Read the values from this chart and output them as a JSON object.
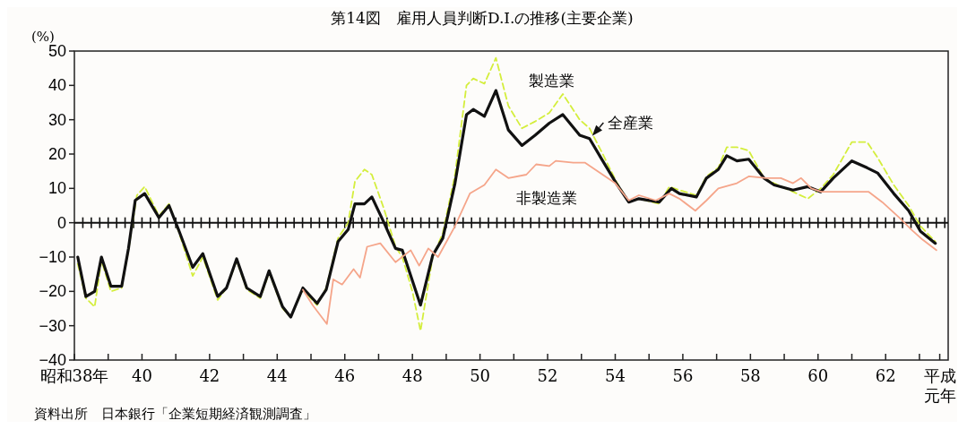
{
  "chart_data": {
    "type": "line",
    "title": "第14図　雇用人員判断D.I.の推移(主要企業)",
    "ylabel": "(%)",
    "xlim": [
      38,
      63.85
    ],
    "ylim": [
      -40,
      50
    ],
    "xticks": [
      {
        "value": 38,
        "label": "昭和38年"
      },
      {
        "value": 39,
        "label": null
      },
      40,
      {
        "value": 41,
        "label": null
      },
      42,
      {
        "value": 43,
        "label": null
      },
      44,
      {
        "value": 45,
        "label": null
      },
      46,
      {
        "value": 47,
        "label": null
      },
      48,
      {
        "value": 49,
        "label": null
      },
      50,
      {
        "value": 51,
        "label": null
      },
      52,
      {
        "value": 53,
        "label": null
      },
      54,
      {
        "value": 55,
        "label": null
      },
      56,
      {
        "value": 57,
        "label": null
      },
      58,
      {
        "value": 59,
        "label": null
      },
      60,
      {
        "value": 61,
        "label": null
      },
      62,
      {
        "value": 63,
        "label": null
      },
      {
        "value": 63.6,
        "label": "平成元年"
      }
    ],
    "yticks": [
      -40,
      -30,
      -20,
      -10,
      0,
      10,
      20,
      30,
      40,
      50
    ],
    "grid": false,
    "ref_lines": [
      {
        "axis": "y",
        "value": 0,
        "color": "#111111"
      }
    ],
    "series": [
      {
        "name": "製造業",
        "color": "#d4ee3c",
        "line_style": "dashed",
        "x": [
          38.1,
          38.34,
          38.6,
          38.8,
          39.08,
          39.4,
          39.6,
          39.85,
          40.08,
          40.5,
          40.8,
          41.1,
          41.5,
          41.8,
          42.24,
          42.5,
          42.8,
          43.1,
          43.5,
          43.76,
          44.16,
          44.4,
          44.76,
          45.18,
          45.45,
          45.8,
          46.1,
          46.3,
          46.58,
          46.8,
          47.16,
          47.5,
          47.7,
          48.0,
          48.24,
          48.6,
          48.9,
          49.26,
          49.6,
          49.8,
          50.13,
          50.47,
          50.84,
          51.24,
          51.63,
          52.05,
          52.45,
          52.95,
          53.24,
          53.63,
          54.03,
          54.4,
          54.7,
          55.3,
          55.6,
          55.9,
          56.4,
          56.7,
          57.05,
          57.3,
          57.6,
          57.95,
          58.4,
          58.7,
          59.26,
          59.7,
          60.08,
          60.45,
          61.0,
          61.45,
          61.76,
          62.24,
          62.68,
          63.03,
          63.47
        ],
        "values": [
          -12,
          -22,
          -24.5,
          -11,
          -20,
          -19,
          -8,
          8,
          10.5,
          2,
          5.5,
          -3,
          -15.5,
          -10,
          -22.5,
          -19,
          -11,
          -19.5,
          -22,
          -14.5,
          -25,
          -27.5,
          -19.5,
          -24,
          -19,
          -4.5,
          0,
          12,
          15.5,
          14,
          4,
          -7,
          -10,
          -20,
          -31.5,
          -10,
          -3,
          14,
          40,
          42,
          40.5,
          48,
          34,
          27.5,
          29.5,
          32,
          37.5,
          30,
          27.5,
          20,
          12,
          6,
          7,
          5.5,
          10.5,
          9.5,
          8,
          13.5,
          16,
          22,
          22,
          21,
          13,
          11.5,
          9,
          7,
          10,
          14,
          23.5,
          23.5,
          19,
          11,
          5,
          -1,
          -5.5
        ]
      },
      {
        "name": "全産業",
        "color": "#111111",
        "line_style": "solid",
        "x": [
          38.1,
          38.34,
          38.6,
          38.8,
          39.08,
          39.4,
          39.6,
          39.8,
          40.08,
          40.5,
          40.8,
          41.1,
          41.5,
          41.8,
          42.24,
          42.5,
          42.8,
          43.1,
          43.5,
          43.76,
          44.16,
          44.4,
          44.76,
          45.18,
          45.45,
          45.8,
          46.1,
          46.3,
          46.58,
          46.8,
          47.16,
          47.5,
          47.7,
          48.24,
          48.6,
          48.9,
          49.26,
          49.6,
          49.8,
          50.13,
          50.47,
          50.84,
          51.24,
          51.63,
          52.05,
          52.45,
          52.95,
          53.24,
          53.63,
          54.03,
          54.4,
          54.7,
          55.3,
          55.66,
          55.9,
          56.4,
          56.7,
          57.05,
          57.3,
          57.6,
          57.95,
          58.4,
          58.7,
          59.26,
          59.7,
          60.08,
          60.45,
          61.0,
          61.45,
          61.76,
          62.24,
          62.68,
          63.03,
          63.47
        ],
        "values": [
          -10,
          -21.5,
          -20,
          -10,
          -18.5,
          -18.5,
          -7.5,
          6.5,
          8.5,
          1.5,
          5,
          -2.5,
          -13,
          -9,
          -21.5,
          -19,
          -10.5,
          -19,
          -21.5,
          -14,
          -24.5,
          -27.5,
          -19,
          -23.5,
          -19.5,
          -5.5,
          -2,
          5.5,
          5.5,
          7.5,
          0,
          -7.5,
          -8,
          -24,
          -9.5,
          -4.5,
          11.5,
          31.5,
          33,
          31,
          38.5,
          27,
          22.5,
          25.5,
          29,
          31.5,
          25.5,
          24.5,
          18,
          11.5,
          6,
          7,
          6,
          10,
          8.5,
          7.5,
          13,
          15.5,
          19.5,
          18,
          18.5,
          13,
          11,
          9.5,
          10.5,
          9,
          13,
          18,
          16,
          14.5,
          8.5,
          3.5,
          -2.5,
          -6
        ]
      },
      {
        "name": "非製造業",
        "color": "#f5a58a",
        "line_style": "solid",
        "x": [
          44.76,
          45.05,
          45.47,
          45.66,
          45.92,
          46.26,
          46.45,
          46.66,
          47.05,
          47.5,
          47.95,
          48.2,
          48.47,
          48.76,
          49.26,
          49.7,
          50.13,
          50.47,
          50.84,
          51.37,
          51.66,
          52.05,
          52.24,
          52.76,
          53.1,
          53.55,
          54.0,
          54.4,
          54.7,
          55.2,
          55.6,
          55.9,
          56.37,
          56.7,
          57.05,
          57.6,
          57.95,
          58.47,
          58.9,
          59.26,
          59.5,
          59.8,
          60.1,
          61.0,
          61.5,
          61.9,
          62.4,
          62.76,
          63.1,
          63.5
        ],
        "values": [
          -19.5,
          -24,
          -29.5,
          -16.5,
          -18,
          -13.5,
          -16,
          -7,
          -6,
          -11.5,
          -8,
          -12.5,
          -7.5,
          -10,
          -1,
          8.5,
          11,
          15.5,
          13,
          14,
          17,
          16.5,
          18,
          17.5,
          17.5,
          14.5,
          11.5,
          6.5,
          8,
          6.5,
          8.5,
          7,
          3.5,
          6.5,
          10,
          11.5,
          13.5,
          13,
          13,
          11.5,
          13,
          10,
          9,
          9,
          9,
          6,
          1.5,
          -2,
          -5,
          -8
        ]
      }
    ],
    "annotations": [
      "資料出所　日本銀行「企業短期経済観測調査」"
    ]
  }
}
